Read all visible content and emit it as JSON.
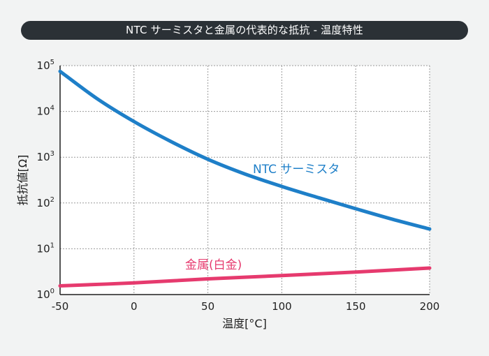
{
  "title": "NTC サーミスタと金属の代表的な抵抗 - 温度特性",
  "chart_data": {
    "type": "line",
    "xlabel": "温度[°C]",
    "ylabel": "抵抗値[Ω]",
    "xlim": [
      -50,
      200
    ],
    "ylim": [
      1,
      100000
    ],
    "yscale": "log",
    "grid": true,
    "x_ticks": [
      -50,
      0,
      50,
      100,
      150,
      200
    ],
    "y_ticks": [
      {
        "base": "10",
        "exp": "0",
        "value": 1
      },
      {
        "base": "10",
        "exp": "1",
        "value": 10
      },
      {
        "base": "10",
        "exp": "2",
        "value": 100
      },
      {
        "base": "10",
        "exp": "3",
        "value": 1000
      },
      {
        "base": "10",
        "exp": "4",
        "value": 10000
      },
      {
        "base": "10",
        "exp": "5",
        "value": 100000
      }
    ],
    "series": [
      {
        "name": "NTC サーミスタ",
        "color": "#1e7fc8",
        "x": [
          -50,
          -25,
          0,
          25,
          50,
          75,
          100,
          125,
          150,
          175,
          200
        ],
        "y": [
          75000,
          19000,
          6000,
          2200,
          900,
          430,
          230,
          130,
          75,
          44,
          27
        ]
      },
      {
        "name": "金属(白金)",
        "color": "#e63a6e",
        "x": [
          -50,
          0,
          50,
          100,
          150,
          200
        ],
        "y": [
          1.55,
          1.8,
          2.2,
          2.6,
          3.1,
          3.8
        ]
      }
    ]
  }
}
